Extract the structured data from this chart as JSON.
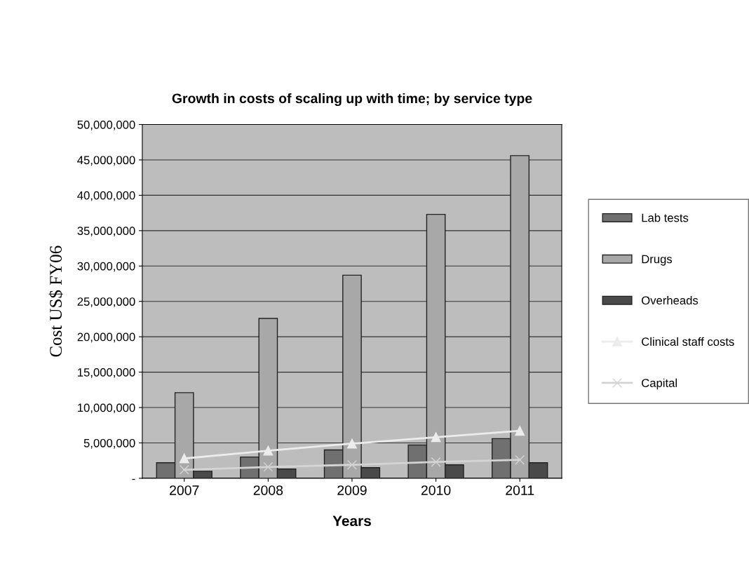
{
  "chart_data": {
    "type": "bar",
    "title": "Growth in costs of scaling up with time; by service type",
    "xlabel": "Years",
    "ylabel": "Cost US$ FY06",
    "categories": [
      "2007",
      "2008",
      "2009",
      "2010",
      "2011"
    ],
    "series": [
      {
        "name": "Lab tests",
        "color": "#707070",
        "values": [
          2200000,
          3000000,
          4000000,
          4700000,
          5600000
        ]
      },
      {
        "name": "Drugs",
        "color": "#a8a8a8",
        "values": [
          12100000,
          22600000,
          28700000,
          37300000,
          45600000
        ]
      },
      {
        "name": "Overheads",
        "color": "#4a4a4a",
        "values": [
          1000000,
          1300000,
          1500000,
          1900000,
          2200000
        ]
      },
      {
        "name": "Clinical staff costs",
        "type": "line",
        "color": "#ececec",
        "marker": "triangle",
        "values": [
          2800000,
          3900000,
          4900000,
          5800000,
          6700000
        ]
      },
      {
        "name": "Capital",
        "type": "line",
        "color": "#d4d4d4",
        "marker": "cross",
        "values": [
          1200000,
          1600000,
          1900000,
          2300000,
          2600000
        ]
      }
    ],
    "ylim": [
      0,
      50000000
    ],
    "yticks": [
      {
        "value": 0,
        "label": "-"
      },
      {
        "value": 5000000,
        "label": "5,000,000"
      },
      {
        "value": 10000000,
        "label": "10,000,000"
      },
      {
        "value": 15000000,
        "label": "15,000,000"
      },
      {
        "value": 20000000,
        "label": "20,000,000"
      },
      {
        "value": 25000000,
        "label": "25,000,000"
      },
      {
        "value": 30000000,
        "label": "30,000,000"
      },
      {
        "value": 35000000,
        "label": "35,000,000"
      },
      {
        "value": 40000000,
        "label": "40,000,000"
      },
      {
        "value": 45000000,
        "label": "45,000,000"
      },
      {
        "value": 50000000,
        "label": "50,000,000"
      }
    ],
    "grid": "y",
    "legend": "right"
  }
}
